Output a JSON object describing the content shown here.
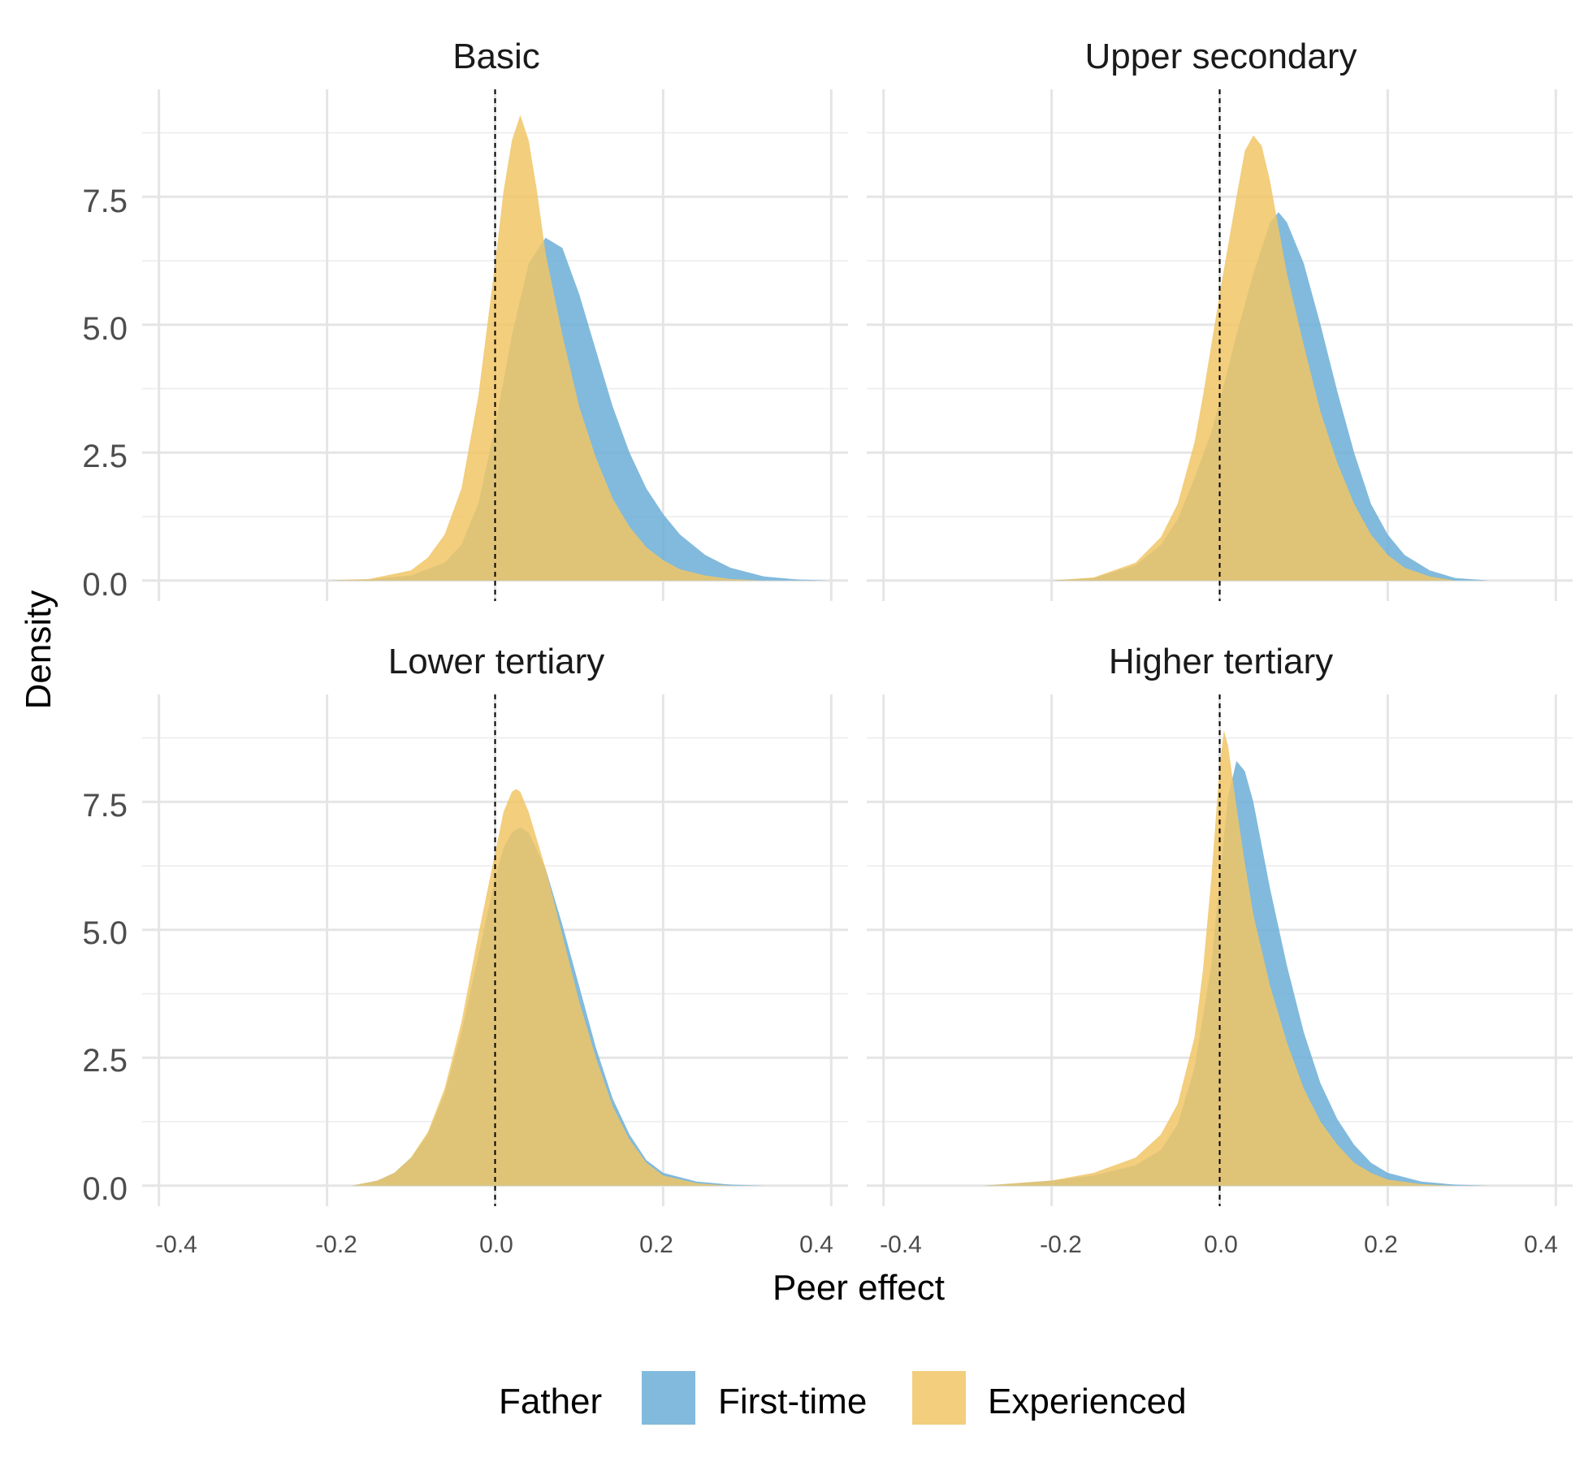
{
  "chart_data": {
    "type": "area",
    "chart_kind": "faceted density plot",
    "xlabel": "Peer effect",
    "ylabel": "Density",
    "xlim": [
      -0.42,
      0.42
    ],
    "ylim": [
      -0.4,
      9.6
    ],
    "x_ticks": [
      -0.4,
      -0.2,
      0.0,
      0.2,
      0.4
    ],
    "x_tick_labels": [
      "-0.4",
      "-0.2",
      "0.0",
      "0.2",
      "0.4"
    ],
    "y_ticks": [
      0,
      2.5,
      5,
      7.5
    ],
    "y_tick_labels": [
      "0.0",
      "2.5",
      "5.0",
      "7.5"
    ],
    "reference_line": {
      "x": 0,
      "style": "dashed",
      "color": "#000000"
    },
    "grid": true,
    "legend": {
      "title": "Father",
      "position": "bottom",
      "entries": [
        {
          "label": "First-time",
          "color": "#6BAED6"
        },
        {
          "label": "Experienced",
          "color": "#F0C566"
        }
      ]
    },
    "fill_opacity": 0.85,
    "facets": [
      {
        "title": "Basic",
        "series": [
          {
            "name": "First-time",
            "color": "#6BAED6",
            "x": [
              -0.2,
              -0.15,
              -0.1,
              -0.06,
              -0.04,
              -0.02,
              0,
              0.02,
              0.04,
              0.06,
              0.08,
              0.1,
              0.12,
              0.14,
              0.16,
              0.18,
              0.2,
              0.22,
              0.25,
              0.28,
              0.32,
              0.36,
              0.4
            ],
            "y": [
              0,
              0.02,
              0.1,
              0.35,
              0.7,
              1.5,
              3.0,
              4.8,
              6.2,
              6.7,
              6.5,
              5.6,
              4.5,
              3.4,
              2.5,
              1.8,
              1.3,
              0.9,
              0.5,
              0.25,
              0.08,
              0.02,
              0
            ]
          },
          {
            "name": "Experienced",
            "color": "#F0C566",
            "x": [
              -0.2,
              -0.15,
              -0.1,
              -0.08,
              -0.06,
              -0.04,
              -0.02,
              0,
              0.01,
              0.02,
              0.03,
              0.04,
              0.05,
              0.06,
              0.08,
              0.1,
              0.12,
              0.14,
              0.16,
              0.18,
              0.2,
              0.22,
              0.25,
              0.28,
              0.32
            ],
            "y": [
              0,
              0.03,
              0.2,
              0.45,
              0.9,
              1.8,
              3.6,
              6.2,
              7.6,
              8.6,
              9.1,
              8.6,
              7.6,
              6.4,
              4.8,
              3.4,
              2.4,
              1.6,
              1.05,
              0.65,
              0.4,
              0.22,
              0.1,
              0.03,
              0
            ]
          }
        ]
      },
      {
        "title": "Upper secondary",
        "series": [
          {
            "name": "First-time",
            "color": "#6BAED6",
            "x": [
              -0.2,
              -0.15,
              -0.1,
              -0.07,
              -0.05,
              -0.03,
              -0.01,
              0,
              0.02,
              0.04,
              0.06,
              0.07,
              0.08,
              0.1,
              0.12,
              0.14,
              0.16,
              0.18,
              0.2,
              0.22,
              0.25,
              0.28,
              0.32
            ],
            "y": [
              0,
              0.05,
              0.3,
              0.7,
              1.2,
              2.0,
              2.9,
              3.5,
              4.8,
              6.0,
              7.0,
              7.2,
              7.0,
              6.2,
              5.0,
              3.7,
              2.5,
              1.5,
              0.9,
              0.5,
              0.2,
              0.05,
              0
            ]
          },
          {
            "name": "Experienced",
            "color": "#F0C566",
            "x": [
              -0.2,
              -0.15,
              -0.1,
              -0.07,
              -0.05,
              -0.03,
              -0.02,
              0,
              0.02,
              0.03,
              0.04,
              0.05,
              0.06,
              0.07,
              0.08,
              0.1,
              0.12,
              0.14,
              0.16,
              0.18,
              0.2,
              0.22,
              0.25,
              0.28
            ],
            "y": [
              0,
              0.06,
              0.35,
              0.85,
              1.5,
              2.7,
              3.6,
              5.6,
              7.5,
              8.4,
              8.7,
              8.5,
              7.8,
              6.9,
              6.0,
              4.6,
              3.3,
              2.3,
              1.5,
              0.9,
              0.5,
              0.25,
              0.08,
              0
            ]
          }
        ]
      },
      {
        "title": "Lower tertiary",
        "series": [
          {
            "name": "First-time",
            "color": "#6BAED6",
            "x": [
              -0.17,
              -0.14,
              -0.12,
              -0.1,
              -0.08,
              -0.06,
              -0.04,
              -0.02,
              0,
              0.01,
              0.02,
              0.03,
              0.04,
              0.06,
              0.08,
              0.1,
              0.12,
              0.14,
              0.16,
              0.18,
              0.2,
              0.24,
              0.28,
              0.32
            ],
            "y": [
              0,
              0.1,
              0.25,
              0.55,
              1.0,
              1.8,
              3.0,
              4.5,
              6.0,
              6.6,
              6.9,
              7.0,
              6.9,
              6.2,
              5.1,
              3.9,
              2.7,
              1.7,
              1.0,
              0.5,
              0.25,
              0.08,
              0.02,
              0
            ]
          },
          {
            "name": "Experienced",
            "color": "#F0C566",
            "x": [
              -0.17,
              -0.14,
              -0.12,
              -0.1,
              -0.08,
              -0.06,
              -0.04,
              -0.02,
              0,
              0.01,
              0.02,
              0.025,
              0.03,
              0.04,
              0.06,
              0.08,
              0.1,
              0.12,
              0.14,
              0.16,
              0.18,
              0.2,
              0.24,
              0.28
            ],
            "y": [
              0,
              0.1,
              0.25,
              0.55,
              1.05,
              1.9,
              3.2,
              4.9,
              6.5,
              7.3,
              7.7,
              7.75,
              7.7,
              7.3,
              6.2,
              4.9,
              3.6,
              2.5,
              1.55,
              0.9,
              0.45,
              0.2,
              0.05,
              0
            ]
          }
        ]
      },
      {
        "title": "Higher tertiary",
        "series": [
          {
            "name": "First-time",
            "color": "#6BAED6",
            "x": [
              -0.28,
              -0.2,
              -0.15,
              -0.1,
              -0.07,
              -0.05,
              -0.03,
              -0.01,
              0,
              0.01,
              0.02,
              0.03,
              0.04,
              0.06,
              0.08,
              0.1,
              0.12,
              0.14,
              0.16,
              0.18,
              0.2,
              0.24,
              0.28,
              0.32
            ],
            "y": [
              0,
              0.1,
              0.2,
              0.4,
              0.7,
              1.2,
              2.3,
              4.3,
              6.0,
              7.6,
              8.3,
              8.1,
              7.5,
              5.8,
              4.3,
              3.0,
              2.0,
              1.3,
              0.8,
              0.45,
              0.25,
              0.08,
              0.02,
              0
            ]
          },
          {
            "name": "Experienced",
            "color": "#F0C566",
            "x": [
              -0.28,
              -0.2,
              -0.15,
              -0.1,
              -0.07,
              -0.05,
              -0.03,
              -0.02,
              -0.01,
              0,
              0.005,
              0.01,
              0.02,
              0.03,
              0.04,
              0.06,
              0.08,
              0.1,
              0.12,
              0.14,
              0.16,
              0.18,
              0.2,
              0.24,
              0.28
            ],
            "y": [
              0,
              0.1,
              0.25,
              0.55,
              1.0,
              1.6,
              2.9,
              4.2,
              6.0,
              8.2,
              8.9,
              8.6,
              7.4,
              6.3,
              5.3,
              3.9,
              2.8,
              1.9,
              1.25,
              0.8,
              0.45,
              0.25,
              0.12,
              0.03,
              0
            ]
          }
        ]
      }
    ]
  }
}
